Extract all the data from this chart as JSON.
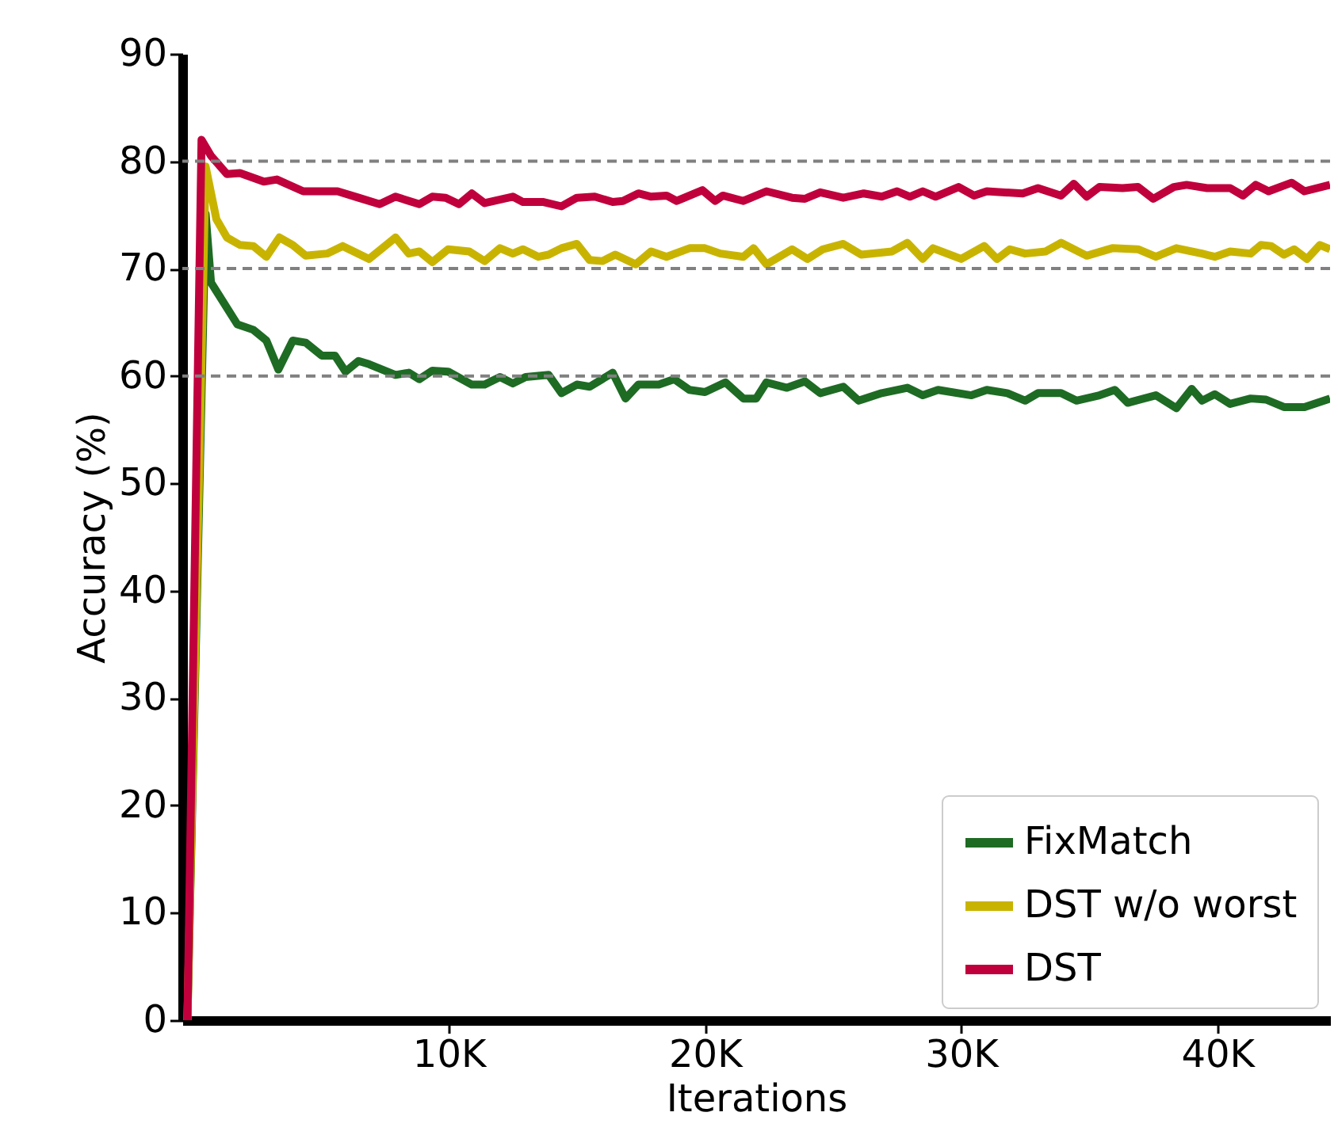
{
  "chart_data": {
    "type": "line",
    "xlabel": "Iterations",
    "ylabel": "Accuracy (%)",
    "xlim": [
      -400,
      44400
    ],
    "xticks": [
      {
        "value": 10000,
        "label": "10K"
      },
      {
        "value": 20000,
        "label": "20K"
      },
      {
        "value": 30000,
        "label": "30K"
      },
      {
        "value": 40000,
        "label": "40K"
      }
    ],
    "ylim": [
      0,
      90
    ],
    "yticks": [
      0,
      10,
      20,
      30,
      40,
      50,
      60,
      70,
      80,
      90
    ],
    "grid": false,
    "legend": "bottom right",
    "marker": "none",
    "line_style": "solid",
    "ref_lines": [
      {
        "axis": "y",
        "value": 60,
        "color": "#808080",
        "line_style": "dashed"
      },
      {
        "axis": "y",
        "value": 70,
        "color": "#808080",
        "line_style": "dashed"
      },
      {
        "axis": "y",
        "value": 80,
        "color": "#808080",
        "line_style": "dashed"
      }
    ],
    "series": [
      {
        "name": "FixMatch",
        "color": "#1e6b24",
        "x": [
          -200,
          510,
          720,
          1750,
          2370,
          2880,
          3350,
          3910,
          4420,
          5040,
          5560,
          5970,
          6480,
          6890,
          7920,
          8440,
          8850,
          9360,
          9980,
          10900,
          11400,
          12000,
          12500,
          13000,
          13900,
          14400,
          15000,
          15500,
          16400,
          16900,
          17400,
          18200,
          18800,
          19400,
          20000,
          20800,
          21500,
          22000,
          22400,
          23200,
          23900,
          24500,
          25400,
          26000,
          26900,
          27900,
          28500,
          29100,
          30400,
          31000,
          31800,
          32500,
          33000,
          33900,
          34500,
          35400,
          36000,
          36500,
          37600,
          38400,
          39000,
          39400,
          39900,
          40500,
          41300,
          41900,
          42600,
          43400,
          44400
        ],
        "values": [
          0,
          75.1,
          68.7,
          64.8,
          64.3,
          63.3,
          60.6,
          63.3,
          63.1,
          61.9,
          61.9,
          60.4,
          61.4,
          61.1,
          60.1,
          60.3,
          59.7,
          60.5,
          60.4,
          59.2,
          59.2,
          59.9,
          59.3,
          59.9,
          60.1,
          58.4,
          59.2,
          59.0,
          60.3,
          57.9,
          59.2,
          59.2,
          59.7,
          58.7,
          58.5,
          59.4,
          57.9,
          57.9,
          59.4,
          58.9,
          59.5,
          58.4,
          59.0,
          57.7,
          58.4,
          58.9,
          58.2,
          58.7,
          58.2,
          58.7,
          58.4,
          57.7,
          58.4,
          58.4,
          57.7,
          58.2,
          58.7,
          57.5,
          58.2,
          57.0,
          58.8,
          57.7,
          58.3,
          57.4,
          57.9,
          57.8,
          57.1,
          57.1,
          57.9
        ]
      },
      {
        "name": "DST w/o worst",
        "color": "#c8b400",
        "x": [
          -200,
          510,
          930,
          1340,
          1850,
          2370,
          2880,
          3390,
          3910,
          4420,
          5250,
          5860,
          6890,
          7920,
          8440,
          8850,
          9360,
          9980,
          10800,
          11400,
          12000,
          12500,
          12900,
          13500,
          13900,
          14400,
          15000,
          15500,
          16000,
          16500,
          17300,
          17900,
          18500,
          19400,
          20000,
          20600,
          21500,
          21900,
          22400,
          23400,
          24000,
          24600,
          25400,
          26100,
          27300,
          27900,
          28500,
          28900,
          30000,
          30900,
          31400,
          31900,
          32500,
          33300,
          33900,
          34900,
          35900,
          36900,
          37600,
          38400,
          39400,
          39900,
          40500,
          41300,
          41700,
          42100,
          42600,
          43000,
          43500,
          44000,
          44400
        ],
        "values": [
          0,
          79.5,
          74.6,
          72.9,
          72.2,
          72.1,
          71.1,
          72.9,
          72.2,
          71.2,
          71.4,
          72.1,
          70.9,
          72.9,
          71.4,
          71.6,
          70.6,
          71.8,
          71.6,
          70.7,
          71.9,
          71.4,
          71.8,
          71.1,
          71.3,
          71.9,
          72.3,
          70.8,
          70.7,
          71.3,
          70.4,
          71.6,
          71.1,
          71.9,
          71.9,
          71.4,
          71.1,
          71.9,
          70.4,
          71.8,
          70.9,
          71.8,
          72.3,
          71.3,
          71.6,
          72.4,
          70.9,
          71.9,
          70.9,
          72.1,
          70.9,
          71.8,
          71.4,
          71.6,
          72.4,
          71.2,
          71.9,
          71.8,
          71.1,
          71.9,
          71.4,
          71.1,
          71.6,
          71.4,
          72.2,
          72.1,
          71.3,
          71.8,
          70.9,
          72.2,
          71.8
        ]
      },
      {
        "name": "DST",
        "color": "#c0003c",
        "x": [
          -200,
          350,
          720,
          1340,
          1850,
          2780,
          3290,
          4320,
          5660,
          6480,
          7300,
          7920,
          8850,
          9360,
          9880,
          10400,
          10900,
          11400,
          12500,
          12900,
          13700,
          14400,
          15000,
          15700,
          16400,
          16800,
          17400,
          17900,
          18500,
          18900,
          19900,
          20400,
          20700,
          21500,
          22400,
          23400,
          23900,
          24500,
          25400,
          26200,
          26900,
          27500,
          28000,
          28500,
          29000,
          29900,
          30500,
          31000,
          32400,
          33000,
          33900,
          34400,
          34900,
          35400,
          36300,
          36900,
          37500,
          38300,
          38800,
          39600,
          40500,
          41000,
          41500,
          42000,
          42900,
          43400,
          44400
        ],
        "values": [
          0,
          82.0,
          80.5,
          78.8,
          78.9,
          78.1,
          78.3,
          77.2,
          77.2,
          76.6,
          76.0,
          76.7,
          76.0,
          76.7,
          76.6,
          76.0,
          77.0,
          76.1,
          76.7,
          76.2,
          76.2,
          75.8,
          76.6,
          76.7,
          76.2,
          76.3,
          77.0,
          76.7,
          76.8,
          76.3,
          77.3,
          76.3,
          76.8,
          76.3,
          77.2,
          76.6,
          76.5,
          77.1,
          76.6,
          77.0,
          76.7,
          77.2,
          76.7,
          77.2,
          76.7,
          77.6,
          76.8,
          77.2,
          77.0,
          77.5,
          76.8,
          77.9,
          76.7,
          77.6,
          77.5,
          77.6,
          76.5,
          77.6,
          77.8,
          77.5,
          77.5,
          76.8,
          77.8,
          77.2,
          78.0,
          77.2,
          77.8
        ]
      }
    ]
  }
}
